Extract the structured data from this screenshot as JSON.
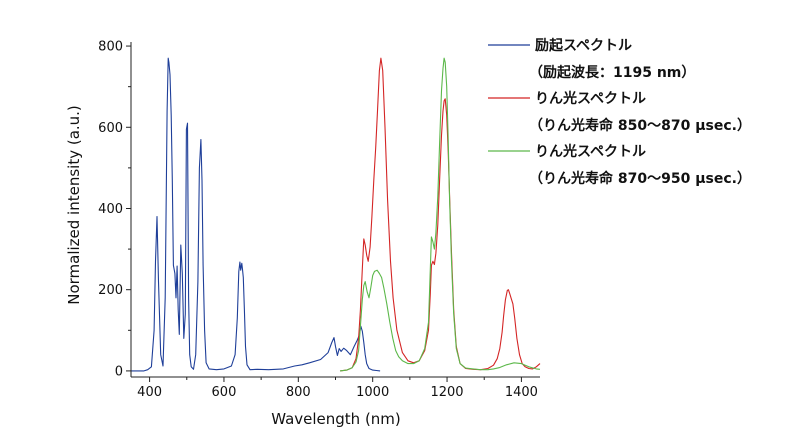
{
  "chart_data": {
    "type": "line",
    "xlabel": "Wavelength (nm)",
    "ylabel": "Normalized intensity (a.u.)",
    "xlim": [
      350,
      1450
    ],
    "ylim": [
      -15,
      810
    ],
    "grid": false,
    "legend_position": "top-right",
    "xticks": [
      "400",
      "600",
      "800",
      "1000",
      "1200",
      "1400"
    ],
    "yticks": [
      "0",
      "200",
      "400",
      "600",
      "800"
    ],
    "series": [
      {
        "name": "励起スペクトル",
        "note": "（励起波長：1195 nm）",
        "color": "#1f3f99",
        "x": [
          350,
          385,
          395,
          405,
          412,
          416,
          420,
          424,
          430,
          436,
          442,
          447,
          450,
          452,
          455,
          458,
          461,
          464,
          468,
          471,
          474,
          477,
          480,
          484,
          488,
          492,
          496,
          499,
          502,
          505,
          508,
          512,
          518,
          524,
          530,
          534,
          538,
          541,
          544,
          548,
          552,
          560,
          580,
          600,
          620,
          630,
          636,
          640,
          643,
          645,
          648,
          650,
          652,
          655,
          658,
          662,
          670,
          690,
          720,
          760,
          790,
          810,
          830,
          860,
          880,
          890,
          896,
          900,
          905,
          910,
          915,
          922,
          930,
          940,
          950,
          958,
          964,
          968,
          972,
          976,
          980,
          984,
          990,
          1000,
          1010,
          1020
        ],
        "y": [
          0,
          0,
          3,
          10,
          100,
          270,
          380,
          220,
          40,
          12,
          180,
          640,
          770,
          760,
          730,
          630,
          470,
          260,
          240,
          180,
          258,
          150,
          90,
          310,
          240,
          80,
          140,
          595,
          610,
          180,
          40,
          10,
          4,
          40,
          220,
          500,
          570,
          470,
          260,
          100,
          20,
          5,
          3,
          5,
          12,
          40,
          130,
          245,
          268,
          248,
          265,
          250,
          230,
          150,
          60,
          15,
          3,
          4,
          3,
          5,
          12,
          15,
          20,
          28,
          45,
          70,
          82,
          60,
          38,
          55,
          48,
          56,
          50,
          40,
          60,
          75,
          88,
          110,
          98,
          70,
          40,
          18,
          6,
          2,
          1,
          0
        ]
      },
      {
        "name": "りん光スペクトル",
        "note": "（りん光寿命 850～870 μsec.）",
        "color": "#d42525",
        "x": [
          912,
          930,
          945,
          955,
          962,
          967,
          972,
          976,
          980,
          984,
          988,
          993,
          998,
          1003,
          1008,
          1013,
          1018,
          1022,
          1027,
          1033,
          1040,
          1048,
          1055,
          1065,
          1080,
          1095,
          1110,
          1125,
          1140,
          1150,
          1155,
          1158,
          1162,
          1166,
          1170,
          1175,
          1180,
          1185,
          1189,
          1192,
          1195,
          1199,
          1203,
          1207,
          1212,
          1218,
          1225,
          1235,
          1250,
          1270,
          1290,
          1310,
          1325,
          1335,
          1342,
          1348,
          1352,
          1357,
          1362,
          1365,
          1368,
          1372,
          1377,
          1382,
          1388,
          1395,
          1402,
          1410,
          1420,
          1430,
          1440,
          1450
        ],
        "y": [
          0,
          2,
          8,
          30,
          80,
          150,
          250,
          325,
          310,
          285,
          270,
          305,
          380,
          470,
          550,
          640,
          740,
          770,
          740,
          600,
          420,
          270,
          180,
          100,
          45,
          25,
          20,
          25,
          50,
          100,
          190,
          260,
          270,
          262,
          290,
          360,
          470,
          580,
          640,
          665,
          670,
          630,
          540,
          430,
          290,
          150,
          60,
          18,
          6,
          4,
          3,
          6,
          14,
          30,
          55,
          95,
          135,
          175,
          198,
          200,
          192,
          180,
          165,
          130,
          80,
          40,
          18,
          10,
          6,
          5,
          10,
          18
        ]
      },
      {
        "name": "りん光スペクトル",
        "note": "（りん光寿命 870～950 μsec.）",
        "color": "#5cb84a",
        "x": [
          912,
          930,
          945,
          955,
          962,
          967,
          972,
          976,
          980,
          985,
          990,
          995,
          1000,
          1005,
          1012,
          1018,
          1024,
          1030,
          1038,
          1046,
          1054,
          1062,
          1070,
          1080,
          1095,
          1110,
          1125,
          1140,
          1150,
          1155,
          1158,
          1162,
          1166,
          1170,
          1175,
          1180,
          1185,
          1189,
          1192,
          1195,
          1199,
          1203,
          1207,
          1212,
          1218,
          1225,
          1235,
          1250,
          1270,
          1290,
          1310,
          1325,
          1340,
          1360,
          1380,
          1400,
          1420,
          1440,
          1450
        ],
        "y": [
          0,
          2,
          8,
          22,
          50,
          110,
          175,
          210,
          220,
          195,
          180,
          205,
          235,
          245,
          248,
          240,
          230,
          205,
          165,
          120,
          80,
          50,
          35,
          25,
          18,
          18,
          25,
          55,
          120,
          250,
          330,
          318,
          300,
          340,
          430,
          560,
          690,
          745,
          770,
          760,
          700,
          570,
          420,
          270,
          140,
          55,
          18,
          7,
          5,
          3,
          3,
          5,
          8,
          15,
          20,
          18,
          10,
          5,
          4
        ]
      }
    ]
  }
}
